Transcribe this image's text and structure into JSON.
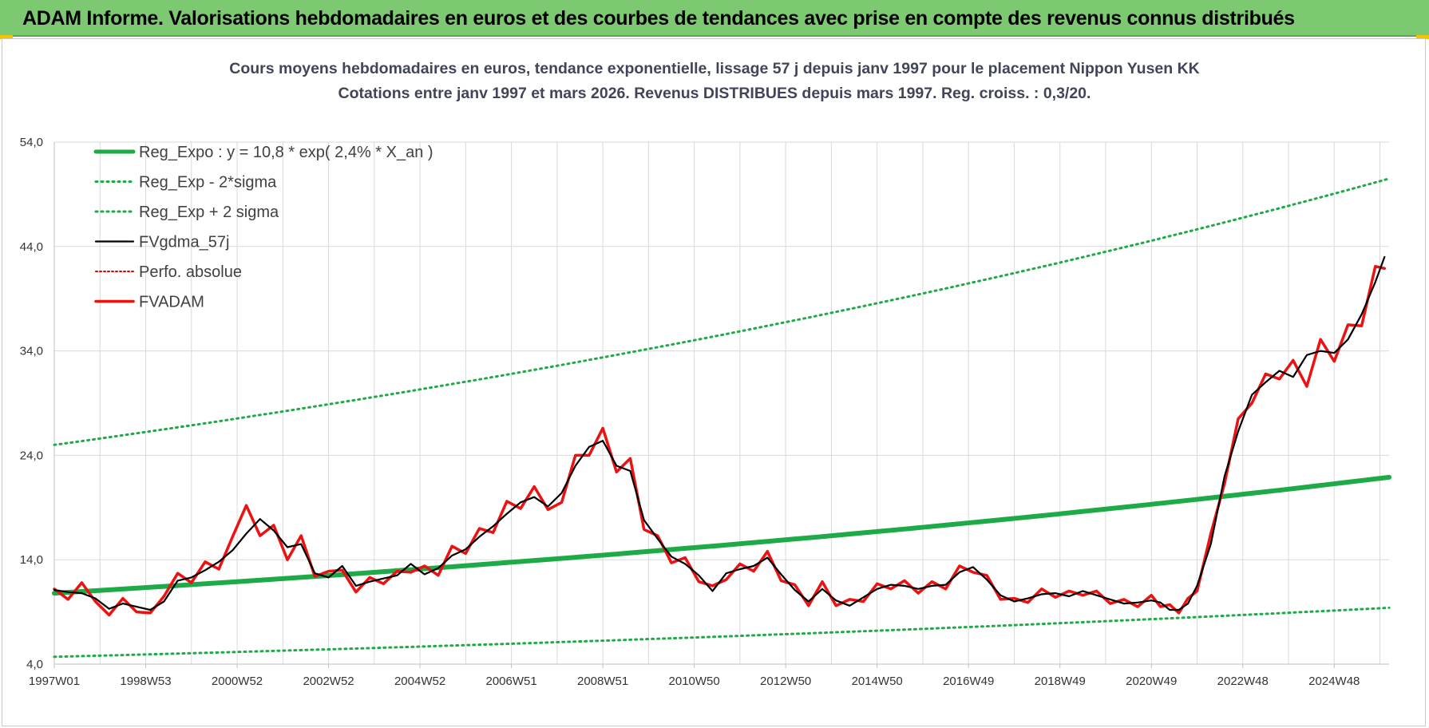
{
  "header": {
    "title": "ADAM Informe. Valorisations hebdomadaires en euros et des courbes de tendances avec prise en compte des revenus connus distribués"
  },
  "colors": {
    "banner": "#7dc972",
    "reg_expo": "#1faa48",
    "sigma_bands": "#1faa48",
    "smoothed": "#000000",
    "perfo": "#e00000",
    "fvadam": "#ee1111",
    "grid": "#d9d9d9"
  },
  "chart_data": {
    "type": "line",
    "title": "Cours moyens hebdomadaires en euros, tendance exponentielle, lissage 57 j depuis janv 1997  pour le placement Nippon Yusen KK",
    "subtitle": "Cotations entre janv 1997 et mars 2026. Revenus DISTRIBUES depuis mars 1997.  Reg. croiss. : 0,3/20.",
    "xlim": [
      1997.0,
      2026.2
    ],
    "ylim": [
      4.0,
      54.0
    ],
    "y_ticks": [
      "4,0",
      "14,0",
      "24,0",
      "34,0",
      "44,0",
      "54,0"
    ],
    "x_tick_labels": [
      "1997W01",
      "1998W53",
      "2000W52",
      "2002W52",
      "2004W52",
      "2006W51",
      "2008W51",
      "2010W50",
      "2012W50",
      "2014W50",
      "2016W49",
      "2018W49",
      "2020W49",
      "2022W48",
      "2024W48"
    ],
    "x_tick_years": [
      1997.0,
      1999.0,
      2001.0,
      2003.0,
      2005.0,
      2007.0,
      2009.0,
      2011.0,
      2013.0,
      2015.0,
      2017.0,
      2019.0,
      2021.0,
      2023.0,
      2025.0
    ],
    "grid": true,
    "legend_position": "top-left",
    "series": [
      {
        "name": "Reg_Expo : y = 10,8 * exp( 2,4% *  X_an )",
        "style": "solid-thick",
        "x": [
          1997.0,
          2026.2
        ],
        "y": [
          10.8,
          21.9
        ]
      },
      {
        "name": "Reg_Exp - 2*sigma",
        "style": "dotted",
        "x": [
          1997.0,
          2026.2
        ],
        "y": [
          4.7,
          9.4
        ]
      },
      {
        "name": "Reg_Exp + 2 sigma",
        "style": "dotted",
        "x": [
          1997.0,
          2026.2
        ],
        "y": [
          25.0,
          50.5
        ]
      },
      {
        "name": "FVgdma_57j",
        "style": "solid-thin",
        "x": [
          1997.0,
          1997.3,
          1997.6,
          1997.9,
          1998.2,
          1998.5,
          1998.8,
          1999.1,
          1999.4,
          1999.7,
          2000.0,
          2000.3,
          2000.6,
          2000.9,
          2001.2,
          2001.5,
          2001.8,
          2002.1,
          2002.4,
          2002.7,
          2003.0,
          2003.3,
          2003.6,
          2003.9,
          2004.2,
          2004.5,
          2004.8,
          2005.1,
          2005.4,
          2005.7,
          2006.0,
          2006.3,
          2006.6,
          2006.9,
          2007.2,
          2007.5,
          2007.8,
          2008.1,
          2008.4,
          2008.7,
          2009.0,
          2009.3,
          2009.6,
          2009.9,
          2010.2,
          2010.5,
          2010.8,
          2011.1,
          2011.4,
          2011.7,
          2012.0,
          2012.3,
          2012.6,
          2012.9,
          2013.2,
          2013.5,
          2013.8,
          2014.1,
          2014.4,
          2014.7,
          2015.0,
          2015.3,
          2015.6,
          2015.9,
          2016.2,
          2016.5,
          2016.8,
          2017.1,
          2017.4,
          2017.7,
          2018.0,
          2018.3,
          2018.6,
          2018.9,
          2019.2,
          2019.5,
          2019.8,
          2020.1,
          2020.4,
          2020.7,
          2021.0,
          2021.2,
          2021.4,
          2021.6,
          2021.8,
          2022.0,
          2022.3,
          2022.6,
          2022.9,
          2023.2,
          2023.5,
          2023.8,
          2024.1,
          2024.4,
          2024.7,
          2025.0,
          2025.3,
          2025.6,
          2025.9,
          2026.1
        ],
        "y": [
          11.1,
          10.9,
          10.8,
          10.3,
          9.3,
          9.8,
          9.5,
          9.2,
          10.0,
          12.0,
          12.3,
          13.0,
          13.8,
          14.9,
          16.5,
          17.9,
          16.8,
          15.2,
          15.5,
          12.7,
          12.3,
          13.4,
          11.5,
          11.9,
          12.2,
          12.5,
          13.6,
          12.6,
          13.2,
          14.4,
          15.0,
          16.2,
          17.2,
          18.4,
          19.5,
          20.0,
          19.1,
          20.4,
          23.0,
          24.8,
          25.4,
          23.0,
          22.5,
          17.8,
          16.0,
          14.3,
          13.6,
          12.5,
          11.0,
          12.7,
          13.1,
          13.4,
          14.2,
          12.6,
          11.1,
          10.0,
          11.2,
          10.1,
          9.6,
          10.4,
          11.2,
          11.6,
          11.5,
          11.2,
          11.5,
          11.6,
          12.8,
          13.3,
          12.1,
          10.6,
          10.0,
          10.3,
          10.7,
          10.8,
          10.5,
          11.0,
          10.6,
          10.2,
          9.8,
          9.9,
          10.1,
          9.9,
          9.2,
          9.2,
          9.8,
          11.5,
          15.5,
          22.0,
          26.3,
          29.8,
          31.0,
          32.1,
          31.5,
          33.6,
          34.0,
          33.8,
          35.1,
          37.5,
          40.6,
          43.0
        ]
      },
      {
        "name": "Perfo. absolue",
        "style": "dotted-thin",
        "x": [],
        "y": []
      },
      {
        "name": "FVADAM",
        "style": "solid-thick",
        "x": [
          1997.0,
          1997.3,
          1997.6,
          1997.9,
          1998.2,
          1998.5,
          1998.8,
          1999.1,
          1999.4,
          1999.7,
          2000.0,
          2000.3,
          2000.6,
          2000.9,
          2001.2,
          2001.5,
          2001.8,
          2002.1,
          2002.4,
          2002.7,
          2003.0,
          2003.3,
          2003.6,
          2003.9,
          2004.2,
          2004.5,
          2004.8,
          2005.1,
          2005.4,
          2005.7,
          2006.0,
          2006.3,
          2006.6,
          2006.9,
          2007.2,
          2007.5,
          2007.8,
          2008.1,
          2008.4,
          2008.7,
          2009.0,
          2009.3,
          2009.6,
          2009.9,
          2010.2,
          2010.5,
          2010.8,
          2011.1,
          2011.4,
          2011.7,
          2012.0,
          2012.3,
          2012.6,
          2012.9,
          2013.2,
          2013.5,
          2013.8,
          2014.1,
          2014.4,
          2014.7,
          2015.0,
          2015.3,
          2015.6,
          2015.9,
          2016.2,
          2016.5,
          2016.8,
          2017.1,
          2017.4,
          2017.7,
          2018.0,
          2018.3,
          2018.6,
          2018.9,
          2019.2,
          2019.5,
          2019.8,
          2020.1,
          2020.4,
          2020.7,
          2021.0,
          2021.2,
          2021.4,
          2021.6,
          2021.8,
          2022.0,
          2022.3,
          2022.6,
          2022.9,
          2023.2,
          2023.5,
          2023.8,
          2024.1,
          2024.4,
          2024.7,
          2025.0,
          2025.3,
          2025.6,
          2025.9,
          2026.1
        ],
        "y": [
          11.2,
          10.2,
          11.8,
          10.0,
          8.7,
          10.3,
          9.0,
          8.9,
          10.5,
          12.7,
          11.8,
          13.8,
          13.1,
          16.2,
          19.2,
          16.3,
          17.3,
          14.0,
          16.3,
          12.4,
          12.9,
          13.0,
          10.9,
          12.3,
          11.7,
          12.9,
          12.8,
          13.4,
          12.5,
          15.3,
          14.6,
          17.0,
          16.6,
          19.6,
          18.9,
          21.0,
          18.8,
          19.5,
          24.0,
          24.0,
          26.6,
          22.4,
          23.7,
          16.9,
          16.3,
          13.7,
          14.2,
          11.9,
          11.5,
          12.1,
          13.6,
          12.9,
          14.8,
          12.0,
          11.6,
          9.6,
          11.9,
          9.6,
          10.2,
          10.0,
          11.7,
          11.2,
          12.0,
          10.8,
          11.9,
          11.2,
          13.4,
          12.8,
          12.5,
          10.2,
          10.3,
          9.9,
          11.2,
          10.4,
          11.0,
          10.6,
          11.0,
          9.8,
          10.2,
          9.5,
          10.6,
          9.5,
          9.7,
          8.9,
          10.3,
          11.0,
          16.5,
          21.3,
          27.5,
          29.0,
          31.8,
          31.3,
          33.1,
          30.6,
          35.1,
          33.0,
          36.5,
          36.4,
          42.1,
          41.9
        ]
      }
    ]
  }
}
